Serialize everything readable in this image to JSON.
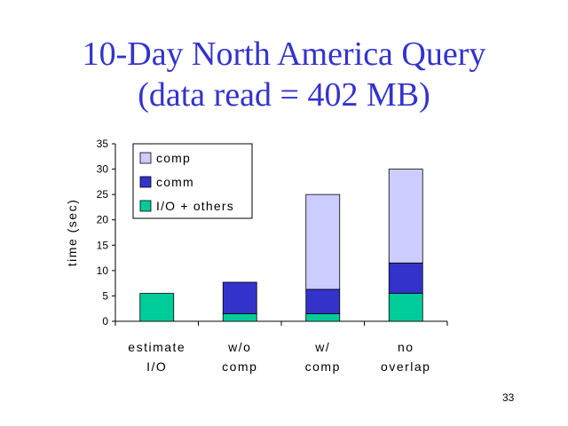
{
  "slide": {
    "title_line1": "10-Day North America Query",
    "title_line2": "(data read = 402 MB)",
    "page_number": "33"
  },
  "colors": {
    "title": "#3333cc",
    "comp": "#ccccff",
    "comm": "#3333cc",
    "io_others": "#00cc99"
  },
  "chart_data": {
    "type": "bar",
    "stacked": true,
    "categories": [
      [
        "estimate",
        "I/O"
      ],
      [
        "w/o",
        "comp"
      ],
      [
        "w/",
        "comp"
      ],
      [
        "no",
        "overlap"
      ]
    ],
    "series": [
      {
        "name": "I/O + others",
        "values": [
          5.5,
          1.5,
          1.5,
          5.5
        ],
        "color": "#00cc99"
      },
      {
        "name": "comm",
        "values": [
          0,
          6.2,
          4.8,
          6.0
        ],
        "color": "#3333cc"
      },
      {
        "name": "comp",
        "values": [
          0,
          0,
          18.7,
          18.5
        ],
        "color": "#ccccff"
      }
    ],
    "legend_order": [
      "comp",
      "comm",
      "I/O + others"
    ],
    "legend_position": "top-left",
    "ylabel": "time (sec)",
    "xlabel": "",
    "ylim": [
      0,
      35
    ],
    "yticks": [
      0,
      5,
      10,
      15,
      20,
      25,
      30,
      35
    ],
    "grid": false
  }
}
